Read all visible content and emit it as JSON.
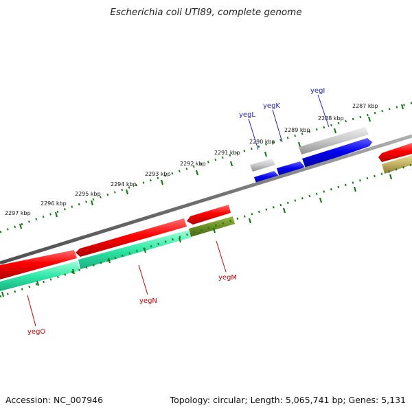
{
  "title": "Escherichia coli UTI89, complete genome",
  "footer": {
    "accession": "Accession: NC_007946",
    "summary": "Topology: circular; Length: 5,065,741 bp; Genes: 5,131"
  },
  "ticks": [
    {
      "label": "2297 kbp"
    },
    {
      "label": "2296 kbp"
    },
    {
      "label": "2295 kbp"
    },
    {
      "label": "2294 kbp"
    },
    {
      "label": "2293 kbp"
    },
    {
      "label": "2292 kbp"
    },
    {
      "label": "2291 kbp"
    },
    {
      "label": "2290 kbp"
    },
    {
      "label": "2289 kbp"
    },
    {
      "label": "2288 kbp"
    },
    {
      "label": "2287 kbp"
    }
  ],
  "genes": [
    {
      "label": "yegL",
      "strand": "forward",
      "color": "#2020c0"
    },
    {
      "label": "yegK",
      "strand": "forward",
      "color": "#2020c0"
    },
    {
      "label": "yegI",
      "strand": "forward",
      "color": "#2020c0"
    },
    {
      "label": "yegM",
      "strand": "reverse",
      "color": "#cc0000"
    },
    {
      "label": "yegN",
      "strand": "reverse",
      "color": "#cc0000"
    },
    {
      "label": "yegO",
      "strand": "reverse",
      "color": "#cc0000"
    }
  ],
  "colors": {
    "backbone": "#808080",
    "tick": "#1a7a1a",
    "forward_cds": "#0000ee",
    "reverse_cds": "#ee0000",
    "gene_grey": "#c0c0c0",
    "gene_teal": "#30e8a8",
    "gene_olive": "#6b8e23",
    "gene_khaki": "#c0b060"
  }
}
